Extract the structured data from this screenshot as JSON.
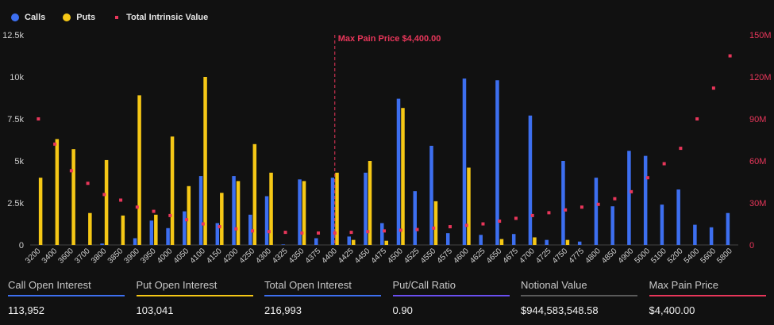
{
  "legend": {
    "calls": {
      "label": "Calls",
      "color": "#3d6ff0"
    },
    "puts": {
      "label": "Puts",
      "color": "#f6c816"
    },
    "intrinsic": {
      "label": "Total Intrinsic Value",
      "color": "#e8365a"
    }
  },
  "chart_data": {
    "type": "bar",
    "categories": [
      "3200",
      "3400",
      "3600",
      "3700",
      "3800",
      "3850",
      "3900",
      "3950",
      "4000",
      "4050",
      "4100",
      "4150",
      "4200",
      "4250",
      "4300",
      "4325",
      "4350",
      "4375",
      "4400",
      "4425",
      "4450",
      "4475",
      "4500",
      "4525",
      "4550",
      "4575",
      "4600",
      "4625",
      "4650",
      "4675",
      "4700",
      "4725",
      "4750",
      "4775",
      "4800",
      "4850",
      "4900",
      "5000",
      "5100",
      "5200",
      "5400",
      "5600",
      "5800"
    ],
    "series": [
      {
        "name": "Calls",
        "axis": "left",
        "values": [
          0,
          0,
          0,
          0,
          80,
          0,
          400,
          1450,
          1000,
          2000,
          4100,
          1300,
          4100,
          1800,
          2900,
          30,
          3900,
          400,
          4000,
          500,
          4300,
          1300,
          8700,
          3200,
          5900,
          700,
          9900,
          600,
          9800,
          650,
          7700,
          300,
          5000,
          200,
          4000,
          2300,
          5600,
          5300,
          2400,
          3300,
          1200,
          1050,
          1900
        ]
      },
      {
        "name": "Puts",
        "axis": "left",
        "values": [
          4000,
          6300,
          5700,
          1900,
          5050,
          1750,
          8900,
          1800,
          6450,
          3500,
          10000,
          3100,
          3800,
          6000,
          4300,
          0,
          3800,
          0,
          4300,
          300,
          5000,
          250,
          8150,
          0,
          2600,
          0,
          4600,
          0,
          350,
          0,
          450,
          0,
          300,
          0,
          0,
          0,
          0,
          0,
          0,
          0,
          0,
          0,
          0
        ]
      },
      {
        "name": "Total Intrinsic Value",
        "axis": "right",
        "style": "markers",
        "values": [
          90000000,
          72000000,
          53000000,
          44000000,
          36000000,
          32000000,
          27000000,
          24000000,
          21000000,
          18000000,
          15000000,
          13000000,
          11500000,
          10000000,
          9500000,
          9000000,
          8500000,
          8500000,
          8500000,
          9000000,
          9500000,
          10000000,
          10500000,
          11000000,
          12000000,
          13000000,
          14000000,
          15000000,
          17000000,
          19000000,
          21000000,
          23000000,
          25000000,
          27000000,
          29000000,
          33000000,
          38000000,
          48000000,
          58000000,
          69000000,
          90000000,
          112000000,
          135000000
        ]
      }
    ],
    "ylim_left": [
      0,
      12500
    ],
    "yticks_left": [
      "0",
      "2.5k",
      "5k",
      "7.5k",
      "10k",
      "12.5k"
    ],
    "ylim_right": [
      0,
      150000000
    ],
    "yticks_right": [
      "0",
      "30M",
      "60M",
      "90M",
      "120M",
      "150M"
    ],
    "max_pain": {
      "strike": "4400",
      "label": "Max Pain Price $4,400.00"
    },
    "grid": false
  },
  "stats": [
    {
      "label": "Call Open Interest",
      "value": "113,952",
      "color": "#3d6ff0"
    },
    {
      "label": "Put Open Interest",
      "value": "103,041",
      "color": "#f6c816"
    },
    {
      "label": "Total Open Interest",
      "value": "216,993",
      "color": "#3d6ff0"
    },
    {
      "label": "Put/Call Ratio",
      "value": "0.90",
      "color": "#6a4ff0"
    },
    {
      "label": "Notional Value",
      "value": "$944,583,548.58",
      "color": "#5a5a5a"
    },
    {
      "label": "Max Pain Price",
      "value": "$4,400.00",
      "color": "#e8365a"
    }
  ]
}
